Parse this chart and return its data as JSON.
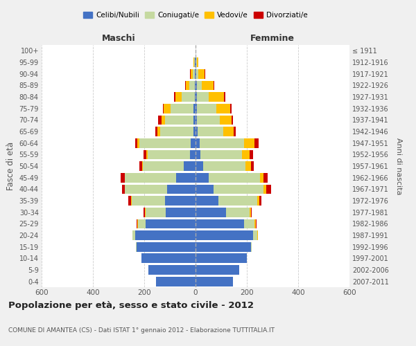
{
  "age_groups_bottom_to_top": [
    "0-4",
    "5-9",
    "10-14",
    "15-19",
    "20-24",
    "25-29",
    "30-34",
    "35-39",
    "40-44",
    "45-49",
    "50-54",
    "55-59",
    "60-64",
    "65-69",
    "70-74",
    "75-79",
    "80-84",
    "85-89",
    "90-94",
    "95-99",
    "100+"
  ],
  "birth_years_bottom_to_top": [
    "2007-2011",
    "2002-2006",
    "1997-2001",
    "1992-1996",
    "1987-1991",
    "1982-1986",
    "1977-1981",
    "1972-1976",
    "1967-1971",
    "1962-1966",
    "1957-1961",
    "1952-1956",
    "1947-1951",
    "1942-1946",
    "1937-1941",
    "1932-1936",
    "1927-1931",
    "1922-1926",
    "1917-1921",
    "1912-1916",
    "≤ 1911"
  ],
  "male_celibi": [
    155,
    185,
    210,
    230,
    235,
    195,
    115,
    120,
    110,
    75,
    45,
    22,
    18,
    8,
    8,
    8,
    3,
    3,
    2,
    2,
    1
  ],
  "male_coniugati": [
    0,
    0,
    0,
    2,
    10,
    30,
    80,
    130,
    165,
    200,
    160,
    165,
    200,
    130,
    110,
    90,
    50,
    20,
    8,
    3,
    0
  ],
  "male_vedovi": [
    0,
    0,
    0,
    0,
    0,
    2,
    2,
    2,
    2,
    2,
    3,
    5,
    8,
    10,
    15,
    25,
    25,
    15,
    10,
    2,
    0
  ],
  "male_divorziati": [
    0,
    0,
    0,
    0,
    0,
    2,
    5,
    10,
    10,
    15,
    10,
    12,
    8,
    10,
    12,
    5,
    5,
    2,
    2,
    0,
    0
  ],
  "female_nubili": [
    145,
    170,
    200,
    215,
    225,
    190,
    120,
    90,
    70,
    50,
    30,
    20,
    15,
    8,
    5,
    5,
    5,
    5,
    3,
    2,
    0
  ],
  "female_coniugate": [
    0,
    0,
    0,
    3,
    15,
    40,
    90,
    150,
    195,
    200,
    165,
    160,
    175,
    100,
    90,
    75,
    45,
    20,
    8,
    3,
    0
  ],
  "female_vedove": [
    0,
    0,
    0,
    0,
    2,
    5,
    5,
    8,
    10,
    15,
    20,
    30,
    40,
    40,
    45,
    55,
    60,
    45,
    25,
    5,
    1
  ],
  "female_divorziate": [
    0,
    0,
    0,
    0,
    0,
    2,
    5,
    10,
    20,
    15,
    12,
    15,
    15,
    10,
    5,
    5,
    5,
    2,
    2,
    2,
    0
  ],
  "colors": {
    "celibi": "#4472c4",
    "coniugati": "#c5d9a0",
    "vedovi": "#ffc000",
    "divorziati": "#cc0000"
  },
  "title": "Popolazione per età, sesso e stato civile - 2012",
  "subtitle": "COMUNE DI AMANTEA (CS) - Dati ISTAT 1° gennaio 2012 - Elaborazione TUTTITALIA.IT",
  "xlabel_left": "Maschi",
  "xlabel_right": "Femmine",
  "ylabel_left": "Fasce di età",
  "ylabel_right": "Anni di nascita",
  "xlim": 600,
  "bg_color": "#f0f0f0",
  "plot_bg": "#ffffff",
  "xticks": [
    600,
    400,
    200,
    0,
    200,
    400,
    600
  ]
}
